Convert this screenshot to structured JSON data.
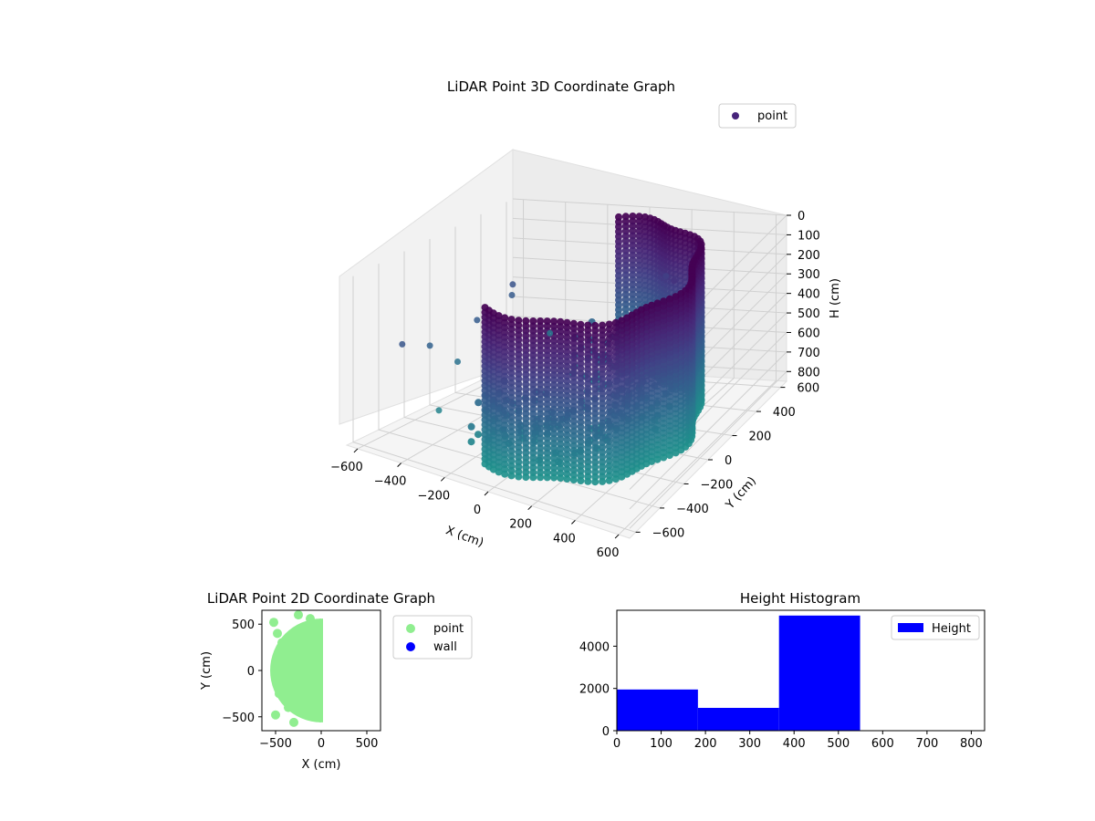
{
  "figure": {
    "background": "#ffffff"
  },
  "chart_data": [
    {
      "type": "scatter",
      "projection": "3d",
      "title": "LiDAR Point 3D Coordinate Graph",
      "xlabel": "X (cm)",
      "ylabel": "Y (cm)",
      "zlabel": "H (cm)",
      "xlim": [
        -650,
        650
      ],
      "ylim": [
        -650,
        650
      ],
      "zlim": [
        0,
        850
      ],
      "z_inverted": true,
      "xticks": [
        "−600",
        "−400",
        "−200",
        "0",
        "200",
        "400",
        "600"
      ],
      "yticks": [
        "−600",
        "−400",
        "−200",
        "0",
        "200",
        "400",
        "600"
      ],
      "zticks": [
        "0",
        "100",
        "200",
        "300",
        "400",
        "500",
        "600",
        "700",
        "800"
      ],
      "grid": true,
      "colormap": "viridis",
      "legend": {
        "position": "upper-right",
        "entries": [
          {
            "label": "point",
            "color": "#46237a"
          }
        ]
      },
      "description_of_points": "Half-cylindrical shell of points, radius ~550 cm on the +X side, heights 0–800 cm, plus sparse outliers on the −X side",
      "shell_radius": 550,
      "shell_angle_range_deg": [
        -100,
        100
      ],
      "shell_height_range": [
        0,
        800
      ],
      "outliers": [
        {
          "x": -620,
          "y": 600,
          "h": 420
        },
        {
          "x": -600,
          "y": 560,
          "h": 460
        },
        {
          "x": -420,
          "y": 560,
          "h": 640
        },
        {
          "x": -560,
          "y": 220,
          "h": 470
        },
        {
          "x": -600,
          "y": -300,
          "h": 430
        },
        {
          "x": -590,
          "y": -100,
          "h": 500
        },
        {
          "x": -520,
          "y": 0,
          "h": 600
        },
        {
          "x": -430,
          "y": -300,
          "h": 720
        },
        {
          "x": 250,
          "y": 420,
          "h": 240
        },
        {
          "x": 130,
          "y": 560,
          "h": 300
        }
      ],
      "colors": {
        "high": "#440154",
        "mid": "#3b528b",
        "low": "#2c728e",
        "pale": "#5ec962"
      }
    },
    {
      "type": "scatter",
      "title": "LiDAR Point 2D Coordinate Graph",
      "xlabel": "X (cm)",
      "ylabel": "Y (cm)",
      "xlim": [
        -650,
        650
      ],
      "ylim": [
        -650,
        650
      ],
      "xticks": [
        -500,
        0,
        500
      ],
      "yticks": [
        -500,
        0,
        500
      ],
      "legend": {
        "position": "outside-right",
        "entries": [
          {
            "label": "point",
            "color": "#90ee90"
          },
          {
            "label": "wall",
            "color": "#0000ff"
          }
        ]
      },
      "series": [
        {
          "name": "point",
          "color": "#90ee90",
          "shape": "half-disk",
          "radius": 560
        },
        {
          "name": "wall",
          "color": "#0000ff",
          "values": []
        }
      ]
    },
    {
      "type": "bar",
      "subtype": "histogram",
      "title": "Height Histogram",
      "xlabel": "",
      "ylabel": "",
      "xlim": [
        0,
        830
      ],
      "ylim": [
        0,
        5700
      ],
      "xticks": [
        0,
        100,
        200,
        300,
        400,
        500,
        600,
        700,
        800
      ],
      "yticks": [
        0,
        2000,
        4000
      ],
      "bins": [
        {
          "x0": 0,
          "x1": 183,
          "value": 1950
        },
        {
          "x0": 183,
          "x1": 366,
          "value": 1080
        },
        {
          "x0": 366,
          "x1": 549,
          "value": 5450
        },
        {
          "x0": 549,
          "x1": 732,
          "value": 0
        },
        {
          "x0": 732,
          "x1": 915,
          "value": 0
        }
      ],
      "color": "#0000ff",
      "legend": {
        "position": "upper-right",
        "entries": [
          {
            "label": "Height",
            "color": "#0000ff"
          }
        ]
      }
    }
  ]
}
